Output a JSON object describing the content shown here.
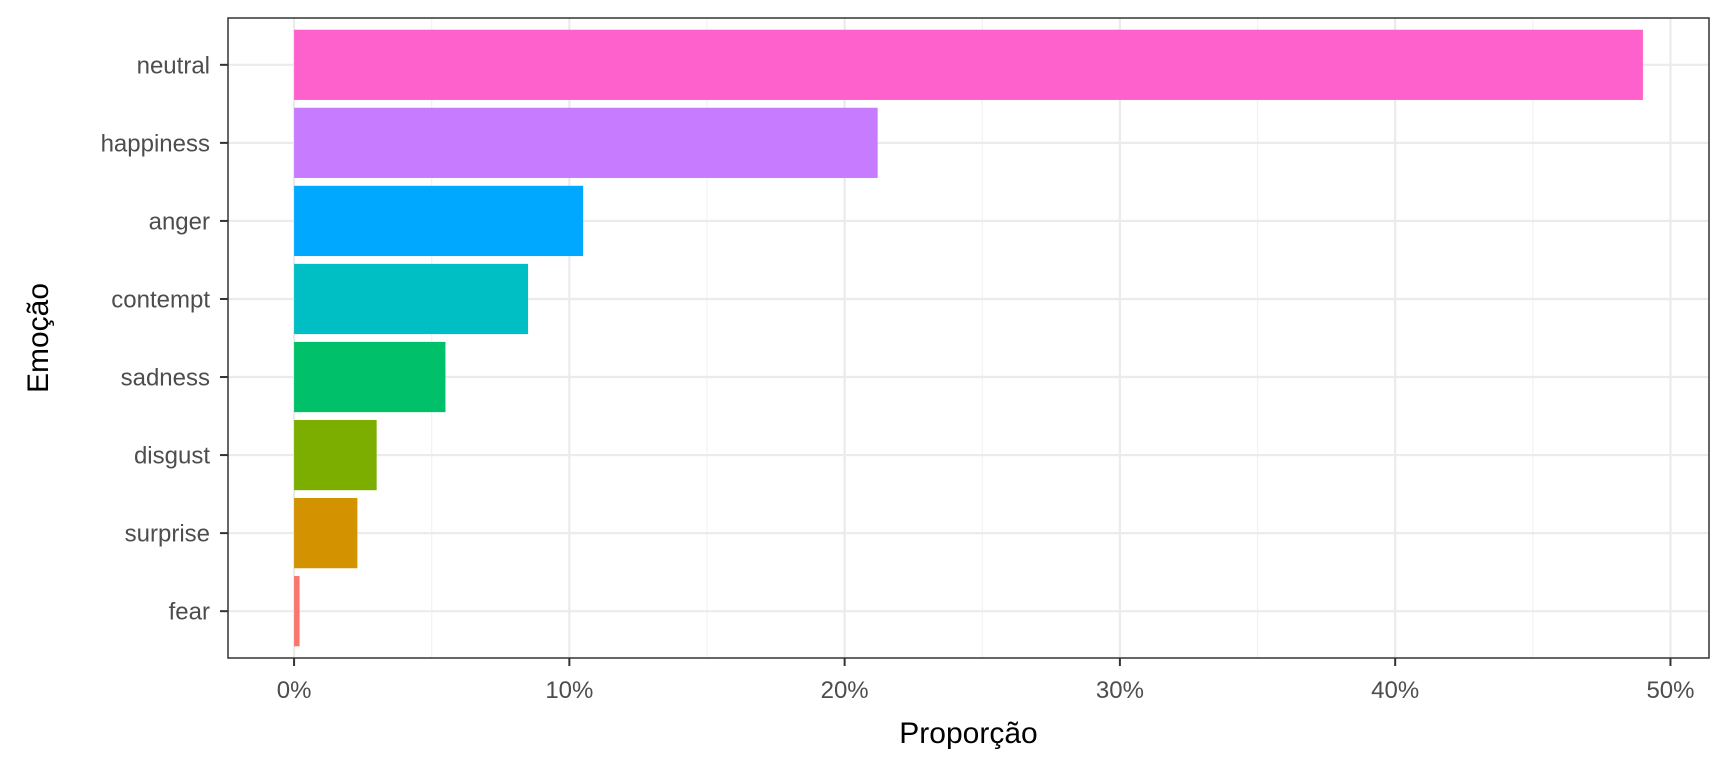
{
  "chart_data": {
    "type": "bar",
    "orientation": "horizontal",
    "title": "",
    "xlabel": "Proporção",
    "ylabel": "Emoção",
    "categories": [
      "fear",
      "surprise",
      "disgust",
      "sadness",
      "contempt",
      "anger",
      "happiness",
      "neutral"
    ],
    "values": [
      0.2,
      2.3,
      3.0,
      5.5,
      8.5,
      10.5,
      21.2,
      49.0
    ],
    "colors": [
      "#F8766D",
      "#D39200",
      "#7CAE00",
      "#00C16A",
      "#00BFC4",
      "#00A9FF",
      "#C77CFF",
      "#FF61CC"
    ],
    "xlim": [
      -2.4,
      51.4
    ],
    "x_ticks": [
      0,
      10,
      20,
      30,
      40,
      50
    ],
    "x_tick_labels": [
      "0%",
      "10%",
      "20%",
      "30%",
      "40%",
      "50%"
    ],
    "grid": true,
    "legend": "none"
  }
}
